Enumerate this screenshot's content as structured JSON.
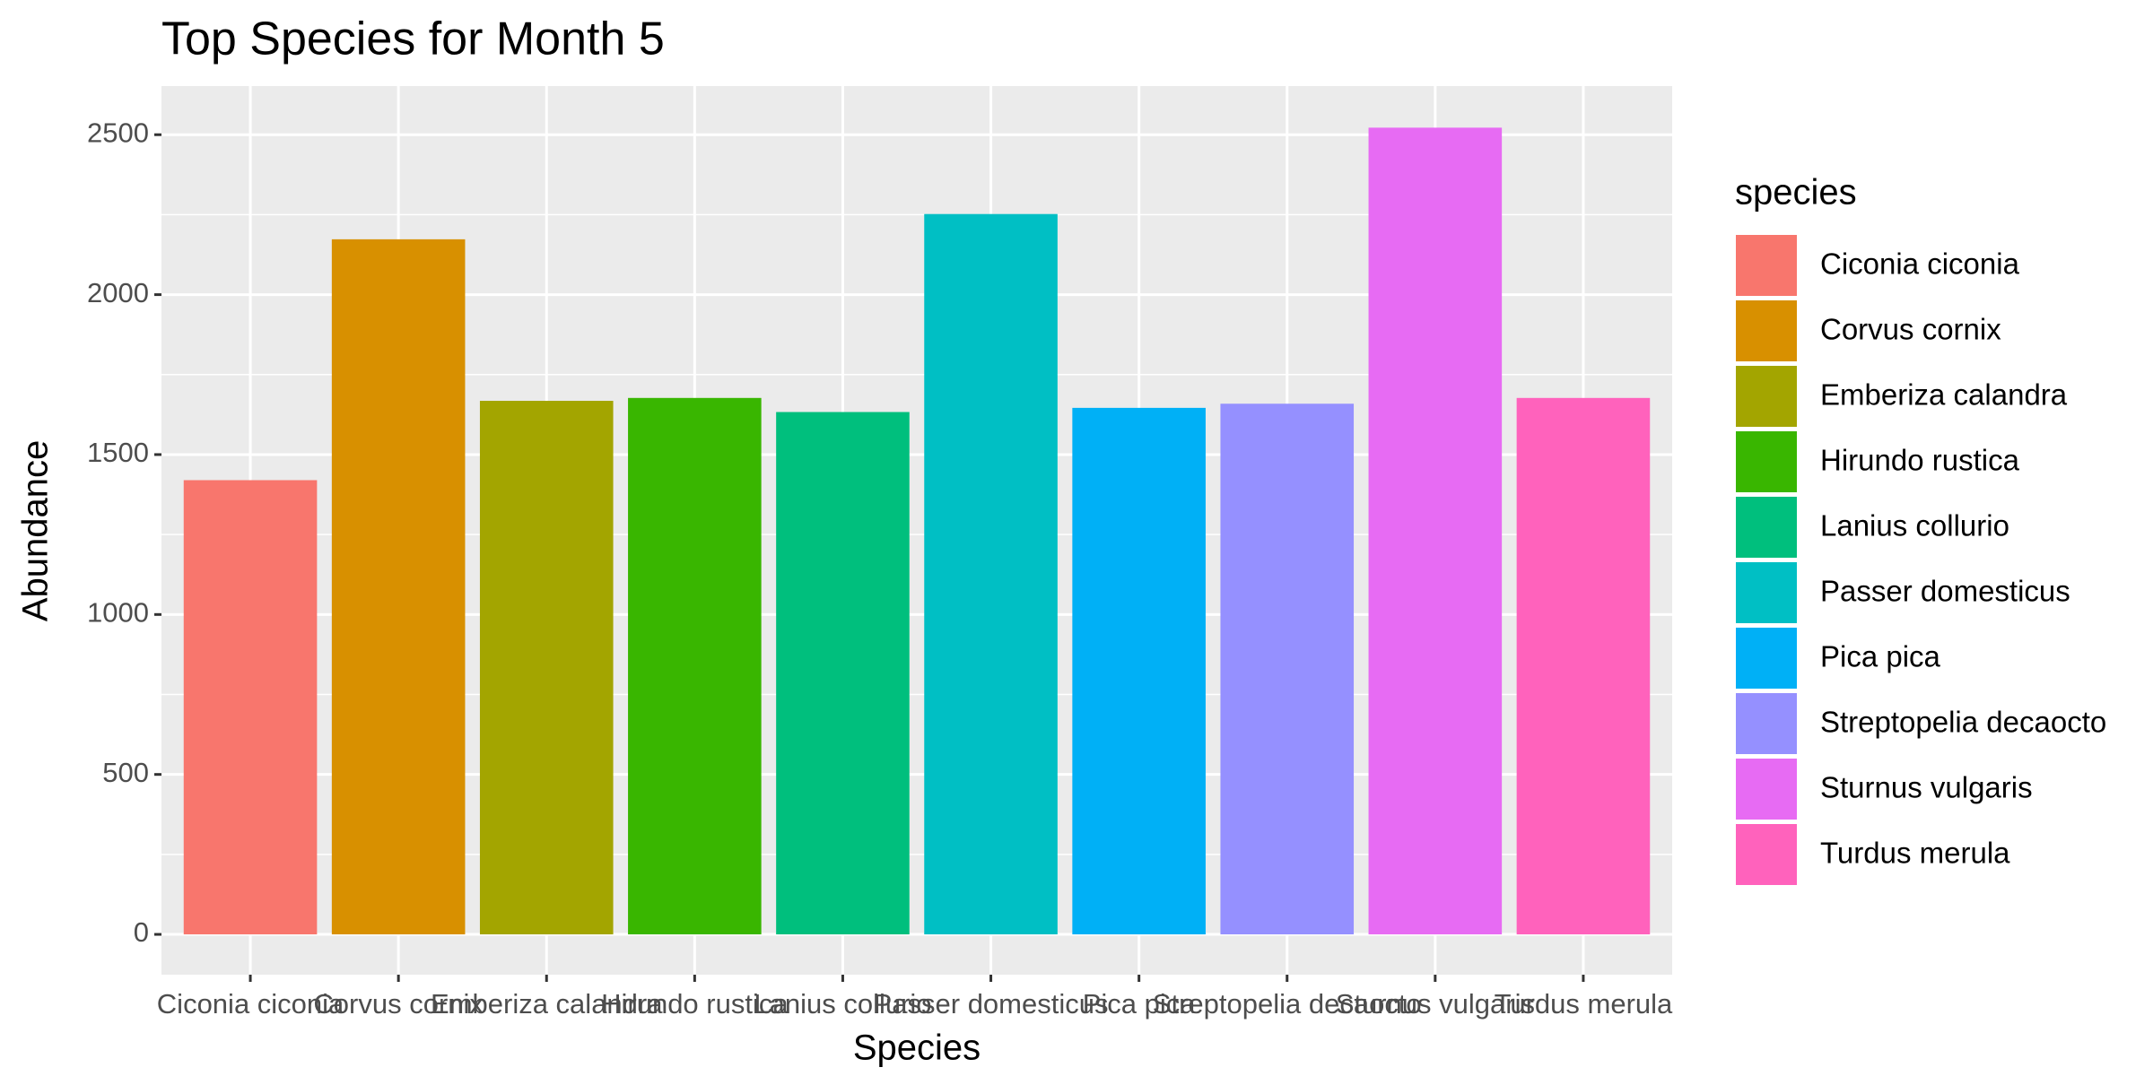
{
  "chart_data": {
    "type": "bar",
    "title": "Top Species for Month 5",
    "x_label": "Species",
    "y_label": "Abundance",
    "legend_title": "species",
    "categories": [
      "Ciconia ciconia",
      "Corvus cornix",
      "Emberiza calandra",
      "Hirundo rustica",
      "Lanius collurio",
      "Passer domesticus",
      "Pica pica",
      "Streptopelia decaocto",
      "Sturnus vulgaris",
      "Turdus merula"
    ],
    "values": [
      1420,
      2173,
      1668,
      1677,
      1633,
      2252,
      1646,
      1659,
      2522,
      1677
    ],
    "colors": [
      "#f8766d",
      "#d89000",
      "#a3a500",
      "#39b600",
      "#00bf7d",
      "#00bfc4",
      "#00b0f6",
      "#9590ff",
      "#e76bf3",
      "#ff62bc"
    ],
    "ylim": [
      -126,
      2652
    ],
    "yticks": [
      0,
      500,
      1000,
      1500,
      2000,
      2500
    ],
    "yminor": [
      250,
      750,
      1250,
      1750,
      2250
    ],
    "grid": true
  }
}
